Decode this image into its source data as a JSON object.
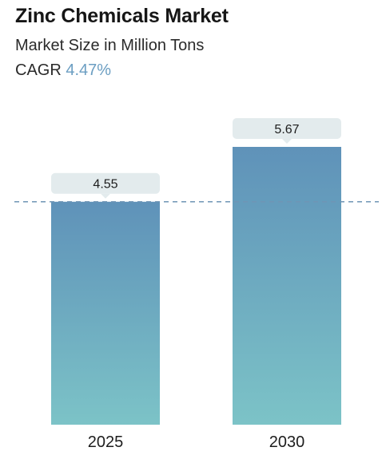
{
  "header": {
    "title": "Zinc Chemicals Market",
    "subtitle": "Market Size in Million Tons",
    "cagr_label": "CAGR",
    "cagr_value": "4.47%"
  },
  "colors": {
    "bar_top": "#5f92b9",
    "bar_bottom": "#7cc3c7",
    "label_bg": "#e3ebed",
    "reference_line": "#6f95b5",
    "cagr_accent": "#6b9ec2"
  },
  "chart_data": {
    "type": "bar",
    "categories": [
      "2025",
      "2030"
    ],
    "values": [
      4.55,
      5.67
    ],
    "data_labels": [
      "4.55",
      "5.67"
    ],
    "title": "Zinc Chemicals Market",
    "subtitle": "Market Size in Million Tons",
    "xlabel": "",
    "ylabel": "",
    "ylim": [
      0,
      5.67
    ],
    "reference_line": 4.55,
    "grid": false,
    "legend": "none"
  }
}
